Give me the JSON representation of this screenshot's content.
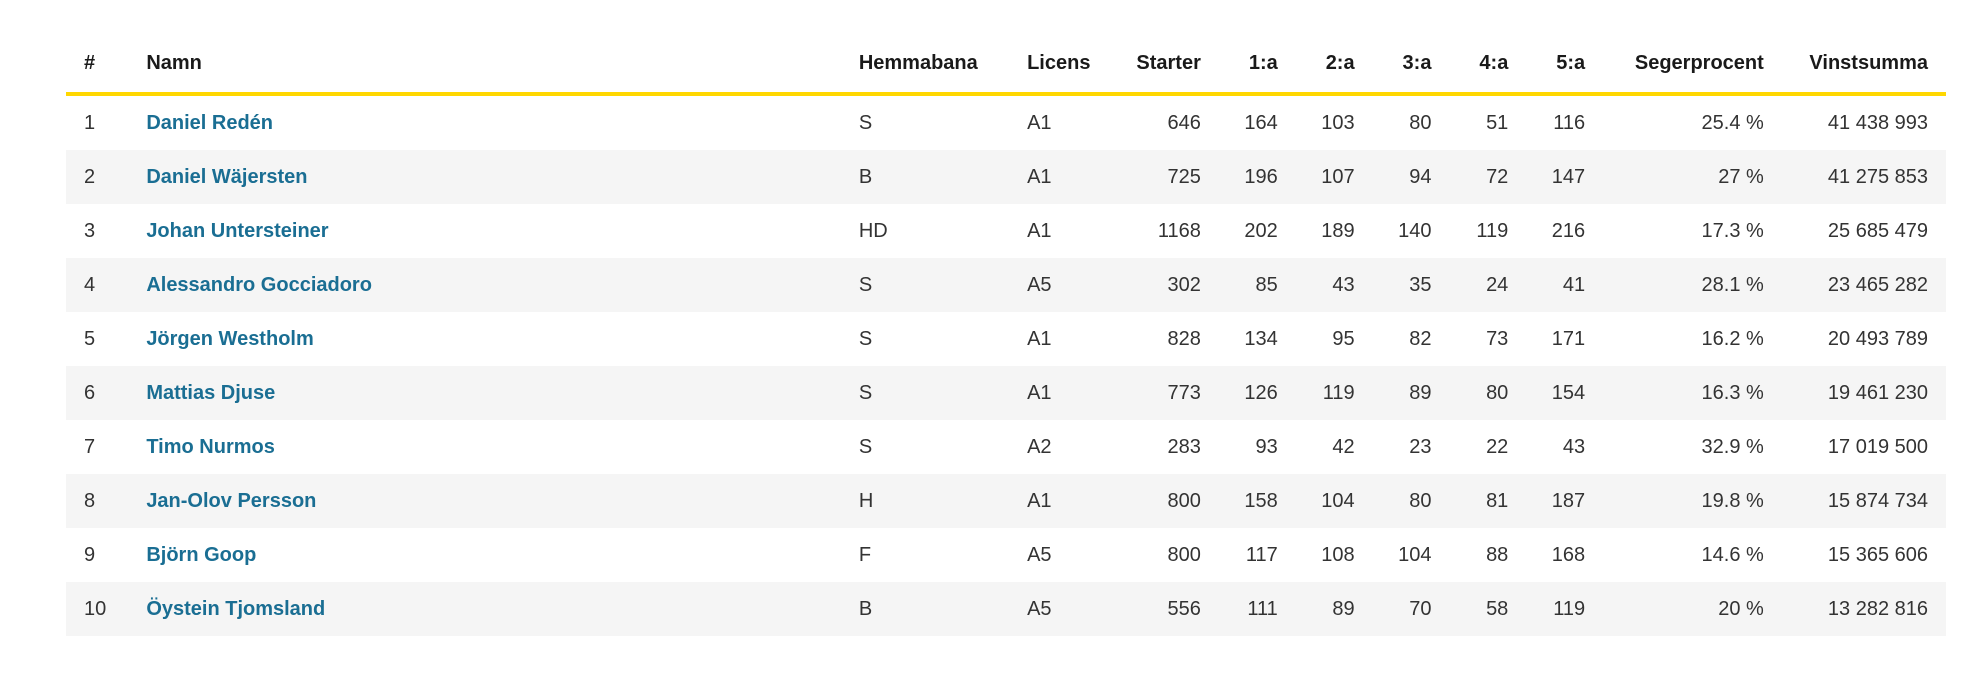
{
  "table": {
    "headers": {
      "rank": "#",
      "name": "Namn",
      "home": "Hemmabana",
      "license": "Licens",
      "starts": "Starter",
      "first": "1:a",
      "second": "2:a",
      "third": "3:a",
      "fourth": "4:a",
      "fifth": "5:a",
      "win_pct": "Segerprocent",
      "earnings": "Vinstsumma"
    },
    "rows": [
      {
        "rank": "1",
        "name": "Daniel Redén",
        "home": "S",
        "license": "A1",
        "starts": "646",
        "first": "164",
        "second": "103",
        "third": "80",
        "fourth": "51",
        "fifth": "116",
        "win_pct": "25.4 %",
        "earnings": "41 438 993"
      },
      {
        "rank": "2",
        "name": "Daniel Wäjersten",
        "home": "B",
        "license": "A1",
        "starts": "725",
        "first": "196",
        "second": "107",
        "third": "94",
        "fourth": "72",
        "fifth": "147",
        "win_pct": "27 %",
        "earnings": "41 275 853"
      },
      {
        "rank": "3",
        "name": "Johan Untersteiner",
        "home": "HD",
        "license": "A1",
        "starts": "1168",
        "first": "202",
        "second": "189",
        "third": "140",
        "fourth": "119",
        "fifth": "216",
        "win_pct": "17.3 %",
        "earnings": "25 685 479"
      },
      {
        "rank": "4",
        "name": "Alessandro Gocciadoro",
        "home": "S",
        "license": "A5",
        "starts": "302",
        "first": "85",
        "second": "43",
        "third": "35",
        "fourth": "24",
        "fifth": "41",
        "win_pct": "28.1 %",
        "earnings": "23 465 282"
      },
      {
        "rank": "5",
        "name": "Jörgen Westholm",
        "home": "S",
        "license": "A1",
        "starts": "828",
        "first": "134",
        "second": "95",
        "third": "82",
        "fourth": "73",
        "fifth": "171",
        "win_pct": "16.2 %",
        "earnings": "20 493 789"
      },
      {
        "rank": "6",
        "name": "Mattias Djuse",
        "home": "S",
        "license": "A1",
        "starts": "773",
        "first": "126",
        "second": "119",
        "third": "89",
        "fourth": "80",
        "fifth": "154",
        "win_pct": "16.3 %",
        "earnings": "19 461 230"
      },
      {
        "rank": "7",
        "name": "Timo Nurmos",
        "home": "S",
        "license": "A2",
        "starts": "283",
        "first": "93",
        "second": "42",
        "third": "23",
        "fourth": "22",
        "fifth": "43",
        "win_pct": "32.9 %",
        "earnings": "17 019 500"
      },
      {
        "rank": "8",
        "name": "Jan-Olov Persson",
        "home": "H",
        "license": "A1",
        "starts": "800",
        "first": "158",
        "second": "104",
        "third": "80",
        "fourth": "81",
        "fifth": "187",
        "win_pct": "19.8 %",
        "earnings": "15 874 734"
      },
      {
        "rank": "9",
        "name": "Björn Goop",
        "home": "F",
        "license": "A5",
        "starts": "800",
        "first": "117",
        "second": "108",
        "third": "104",
        "fourth": "88",
        "fifth": "168",
        "win_pct": "14.6 %",
        "earnings": "15 365 606"
      },
      {
        "rank": "10",
        "name": "Öystein Tjomsland",
        "home": "B",
        "license": "A5",
        "starts": "556",
        "first": "111",
        "second": "89",
        "third": "70",
        "fourth": "58",
        "fifth": "119",
        "win_pct": "20 %",
        "earnings": "13 282 816"
      }
    ]
  },
  "colors": {
    "header_underline": "#ffd700",
    "link": "#1a6e93",
    "stripe": "#f5f5f5"
  }
}
